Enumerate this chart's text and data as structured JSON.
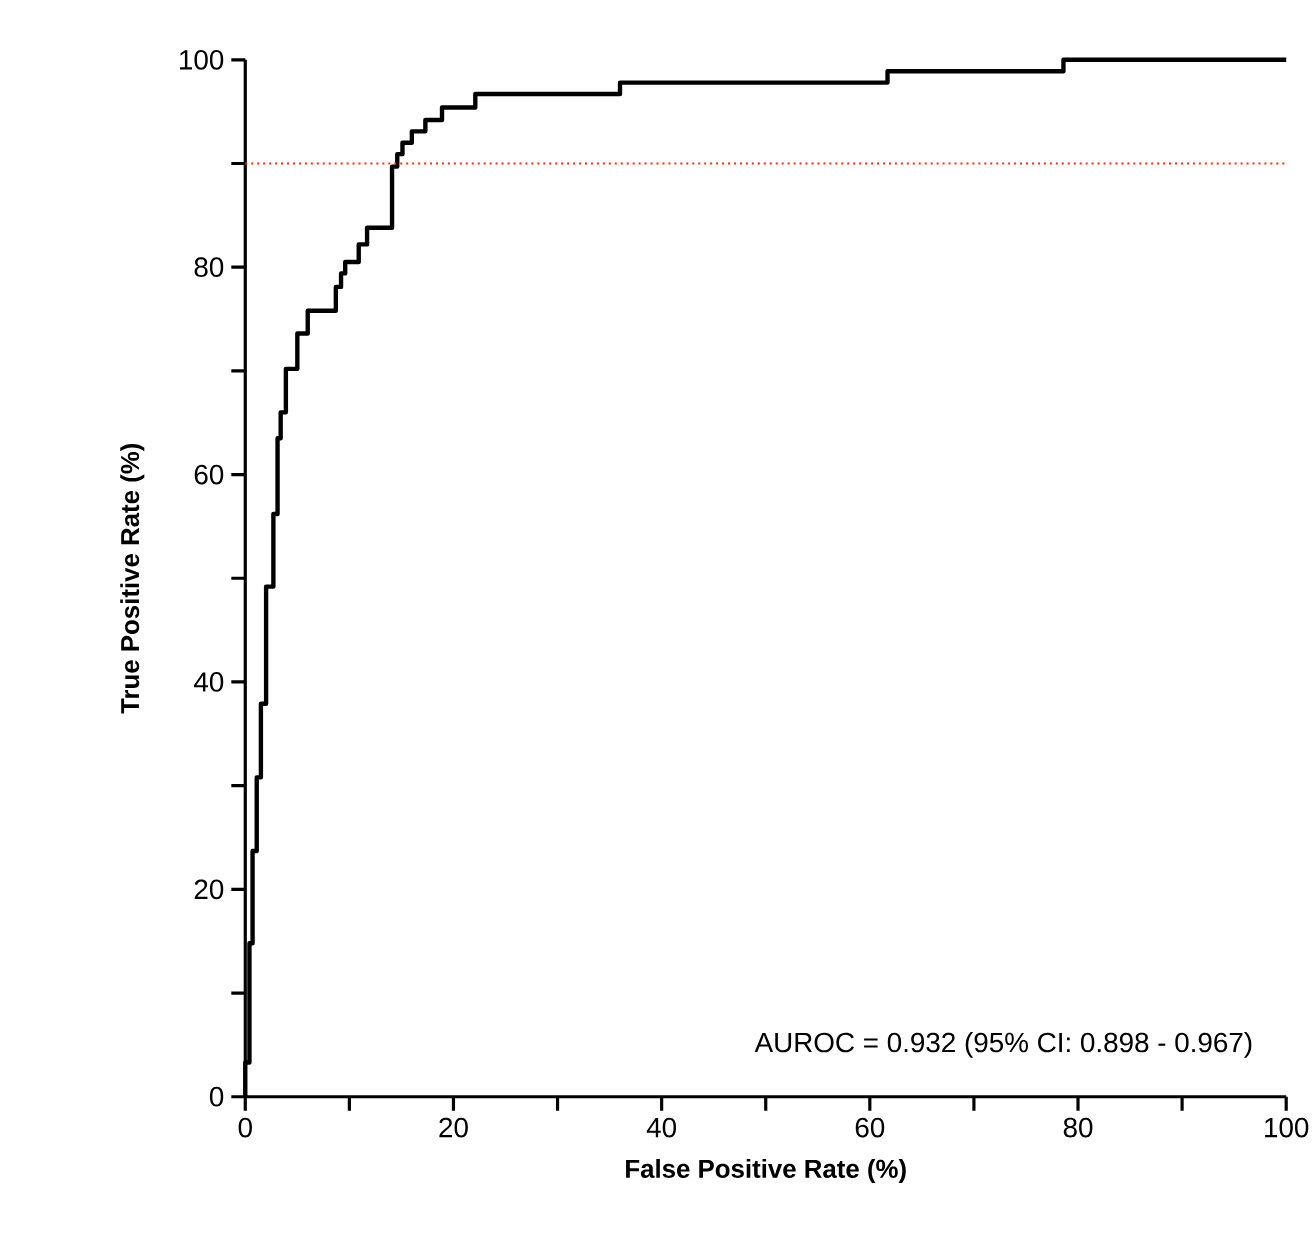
{
  "chart_data": {
    "type": "line",
    "xlabel": "False Positive Rate (%)",
    "ylabel": "True Positive Rate (%)",
    "xlim": [
      0,
      100
    ],
    "ylim": [
      0,
      100
    ],
    "xticks": [
      0,
      {
        "value": 10,
        "label": null
      },
      20,
      {
        "value": 30,
        "label": null
      },
      40,
      {
        "value": 50,
        "label": null
      },
      60,
      {
        "value": 70,
        "label": null
      },
      80,
      {
        "value": 90,
        "label": null
      },
      100
    ],
    "yticks": [
      0,
      {
        "value": 10,
        "label": null
      },
      20,
      {
        "value": 30,
        "label": null
      },
      40,
      {
        "value": 50,
        "label": null
      },
      60,
      {
        "value": 70,
        "label": null
      },
      80,
      {
        "value": 90,
        "label": null
      },
      100
    ],
    "grid": false,
    "marker": "none",
    "line_style": "solid",
    "series": [
      {
        "color": "#000000",
        "x": [
          0,
          0,
          0.4,
          0.4,
          0.7,
          0.7,
          1.1,
          1.1,
          1.5,
          1.5,
          2.0,
          2.0,
          2.7,
          2.7,
          3.1,
          3.1,
          3.4,
          3.4,
          3.9,
          3.9,
          5.0,
          5.0,
          6.0,
          6.0,
          8.7,
          8.7,
          9.2,
          9.2,
          9.6,
          9.6,
          10.9,
          10.9,
          11.7,
          11.7,
          14.1,
          14.1,
          14.6,
          14.6,
          15.1,
          15.1,
          16.0,
          16.0,
          17.3,
          17.3,
          18.9,
          18.9,
          22.1,
          22.1,
          36.0,
          36.0,
          61.7,
          61.7,
          78.6,
          78.6,
          100
        ],
        "values": [
          0,
          3.3,
          3.3,
          14.8,
          14.8,
          23.7,
          23.7,
          30.8,
          30.8,
          37.9,
          37.9,
          49.2,
          49.2,
          56.2,
          56.2,
          63.5,
          63.5,
          66,
          66,
          70.2,
          70.2,
          73.6,
          73.6,
          75.8,
          75.8,
          78.1,
          78.1,
          79.4,
          79.4,
          80.5,
          80.5,
          82.2,
          82.2,
          83.8,
          83.8,
          89.7,
          89.7,
          90.9,
          90.9,
          92.0,
          92.0,
          93.1,
          93.1,
          94.2,
          94.2,
          95.4,
          95.4,
          96.7,
          96.7,
          97.8,
          97.8,
          98.9,
          98.9,
          100,
          100
        ]
      }
    ],
    "ref_lines": [
      {
        "axis": "y",
        "value": 90,
        "color": "#ff2a00",
        "line_style": "dotted"
      }
    ],
    "annotations": [
      "AUROC = 0.932 (95% CI: 0.898 - 0.967)"
    ]
  }
}
